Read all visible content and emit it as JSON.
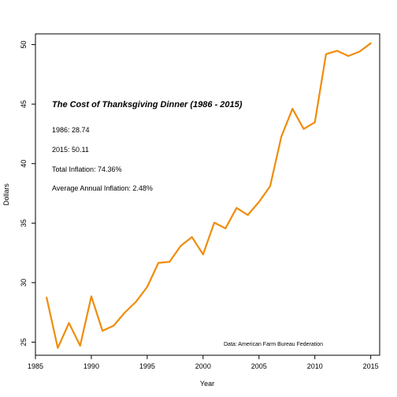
{
  "chart_data": {
    "type": "line",
    "xlabel": "Year",
    "ylabel": "Dollars",
    "xlim": [
      1985,
      2015.8
    ],
    "ylim": [
      23.9,
      50.9
    ],
    "x_ticks": [
      1985,
      1990,
      1995,
      2000,
      2005,
      2010,
      2015
    ],
    "y_ticks": [
      25,
      30,
      35,
      40,
      45,
      50
    ],
    "line_color": "#f08c0a",
    "series": [
      {
        "x": [
          1986,
          1987,
          1988,
          1989,
          1990,
          1991,
          1992,
          1993,
          1994,
          1995,
          1996,
          1997,
          1998,
          1999,
          2000,
          2001,
          2002,
          2003,
          2004,
          2005,
          2006,
          2007,
          2008,
          2009,
          2010,
          2011,
          2012,
          2013,
          2014,
          2015
        ],
        "values": [
          28.74,
          24.51,
          26.61,
          24.7,
          28.85,
          25.95,
          26.39,
          27.49,
          28.4,
          29.64,
          31.66,
          31.75,
          33.09,
          33.83,
          32.37,
          35.04,
          34.56,
          36.28,
          35.68,
          36.78,
          38.1,
          42.26,
          44.61,
          42.91,
          43.47,
          49.2,
          49.48,
          49.04,
          49.41,
          50.11
        ]
      }
    ],
    "annotations": {
      "title": "The Cost of Thanksgiving Dinner (1986 - 2015)",
      "line1": "1986: 28.74",
      "line2": "2015: 50.11",
      "line3": "Total Inflation: 74.36%",
      "line4": "Average Annual Inflation: 2.48%",
      "source": "Data: American Farm Bureau Federation"
    }
  }
}
